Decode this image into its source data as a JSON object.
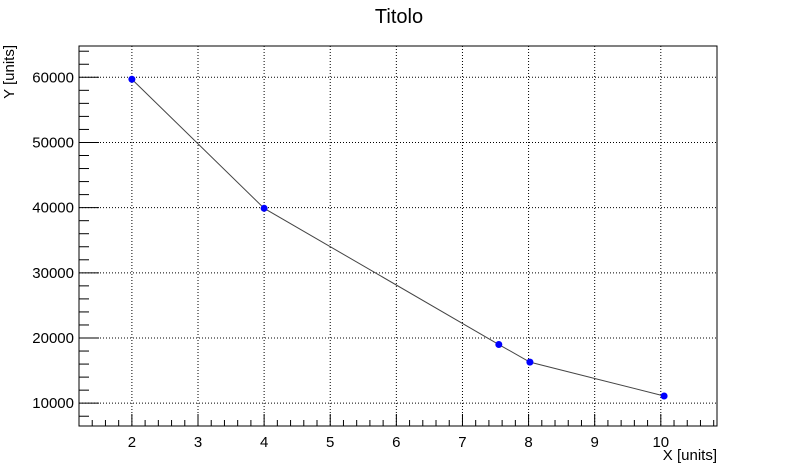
{
  "chart_data": {
    "type": "line",
    "title": "Titolo",
    "xlabel": "X [units]",
    "ylabel": "Y [units]",
    "xlim": [
      1.2,
      10.85
    ],
    "ylim": [
      6500,
      64800
    ],
    "x_ticks": [
      2,
      3,
      4,
      5,
      6,
      7,
      8,
      9,
      10
    ],
    "y_ticks": [
      10000,
      20000,
      30000,
      40000,
      50000,
      60000
    ],
    "x_minor_step": 0.2,
    "y_minor_step": 2000,
    "grid": true,
    "series": [
      {
        "x": [
          2,
          4,
          7.55,
          8.02,
          10.05
        ],
        "y": [
          59700,
          39900,
          19000,
          16300,
          11100
        ],
        "marker_color": "#0000ff",
        "line_color": "#444444"
      }
    ]
  }
}
